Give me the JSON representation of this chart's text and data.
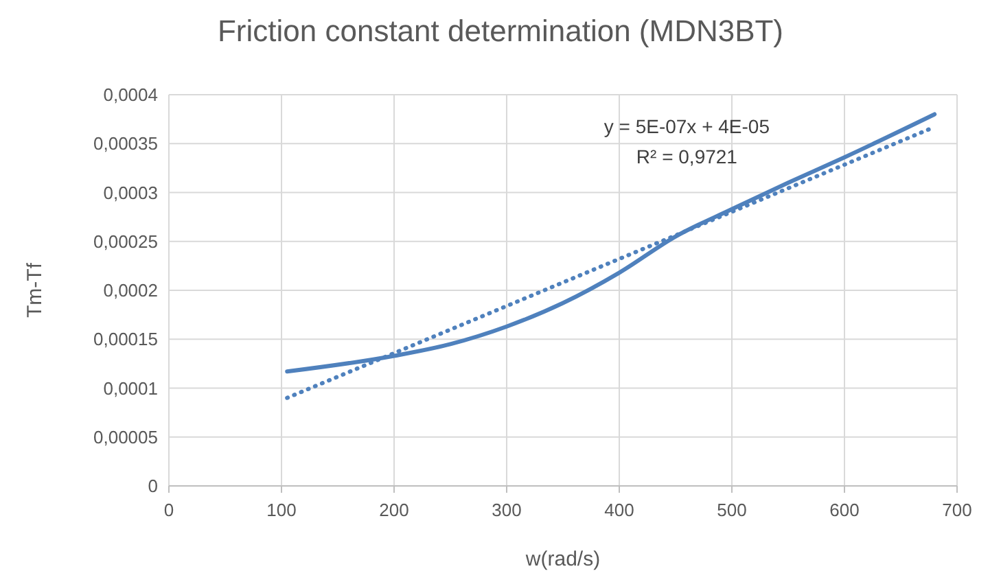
{
  "chart_data": {
    "type": "line",
    "title": "Friction constant determination (MDN3BT)",
    "xlabel": "w(rad/s)",
    "ylabel": "Tm-Tf",
    "xlim": [
      0,
      700
    ],
    "xticks": [
      0,
      100,
      200,
      300,
      400,
      500,
      600,
      700
    ],
    "ylim": [
      0,
      0.0004
    ],
    "yticks": [
      0,
      {
        "value": 5e-05,
        "label": "0,00005"
      },
      {
        "value": 0.0001,
        "label": "0,0001"
      },
      {
        "value": 0.00015,
        "label": "0,00015"
      },
      {
        "value": 0.0002,
        "label": "0,0002"
      },
      {
        "value": 0.00025,
        "label": "0,00025"
      },
      {
        "value": 0.0003,
        "label": "0,0003"
      },
      {
        "value": 0.00035,
        "label": "0,00035"
      },
      {
        "value": 0.0004,
        "label": "0,0004"
      }
    ],
    "grid": true,
    "marker": "none",
    "series": [
      {
        "color": "#4f81bd",
        "line_style": "solid",
        "x": [
          105,
          200,
          250,
          300,
          350,
          400,
          450,
          500,
          550,
          600,
          680
        ],
        "values": [
          0.000117,
          0.000133,
          0.000145,
          0.000163,
          0.000187,
          0.000218,
          0.000255,
          0.000283,
          0.00031,
          0.000336,
          0.00038
        ]
      },
      {
        "color": "#4f81bd",
        "line_style": "dotted",
        "x": [
          105,
          680
        ],
        "values": [
          9e-05,
          0.000367
        ]
      }
    ],
    "annotations": [
      "y = 5E-07x + 4E-05",
      "R² = 0,9721"
    ]
  }
}
